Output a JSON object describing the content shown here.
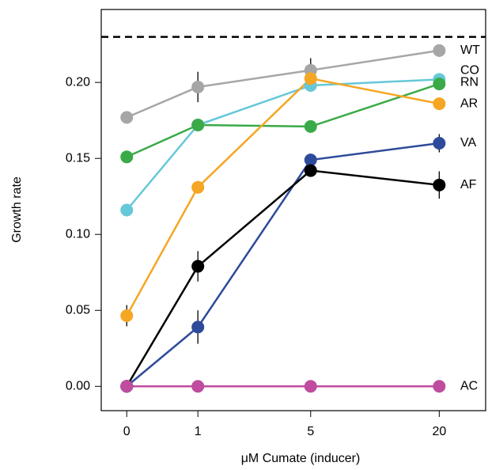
{
  "chart_data": {
    "type": "line",
    "x_label": "μM Cumate (inducer)",
    "y_label": "Growth rate",
    "x": [
      0,
      1,
      5,
      20
    ],
    "x_scale": "log1p",
    "xlim": [
      -0.22,
      32
    ],
    "xticks": [
      0,
      1,
      5,
      20
    ],
    "ylim": [
      -0.016,
      0.248
    ],
    "yticks": [
      {
        "value": 0,
        "label": "0.00"
      },
      0.05,
      {
        "value": 0.1,
        "label": "0.10"
      },
      0.15,
      {
        "value": 0.2,
        "label": "0.20"
      }
    ],
    "reference_line": 0.23,
    "grid": false,
    "series": [
      {
        "name": "WT",
        "color": "#a6a6a6",
        "values": [
          0.177,
          0.197,
          0.208,
          0.221
        ],
        "errors": [
          0.002,
          0.01,
          0.008,
          0.004
        ]
      },
      {
        "name": "CO",
        "color": "#66c8d8",
        "values": [
          0.116,
          0.172,
          0.198,
          0.202
        ],
        "errors": [
          0.002,
          0.003,
          0.004,
          0.004
        ]
      },
      {
        "name": "RN",
        "color": "#3aaa48",
        "values": [
          0.151,
          0.172,
          0.171,
          0.199
        ],
        "errors": [
          0.004,
          0.002,
          0.003,
          0.004
        ]
      },
      {
        "name": "AR",
        "color": "#f5a623",
        "values": [
          0.0465,
          0.131,
          0.2026,
          0.186
        ],
        "errors": [
          0.007,
          0.004,
          0.003,
          0.004
        ]
      },
      {
        "name": "VA",
        "color": "#2e4a9a",
        "values": [
          0,
          0.039,
          0.149,
          0.16
        ],
        "errors": [
          0,
          0.011,
          0.003,
          0.006
        ]
      },
      {
        "name": "AF",
        "color": "#000000",
        "values": [
          0,
          0.079,
          0.142,
          0.1325
        ],
        "errors": [
          0,
          0.01,
          0.004,
          0.009
        ]
      },
      {
        "name": "AC",
        "color": "#c04ca0",
        "values": [
          0,
          0,
          0,
          0
        ],
        "errors": [
          0,
          0,
          0,
          0
        ]
      }
    ]
  }
}
